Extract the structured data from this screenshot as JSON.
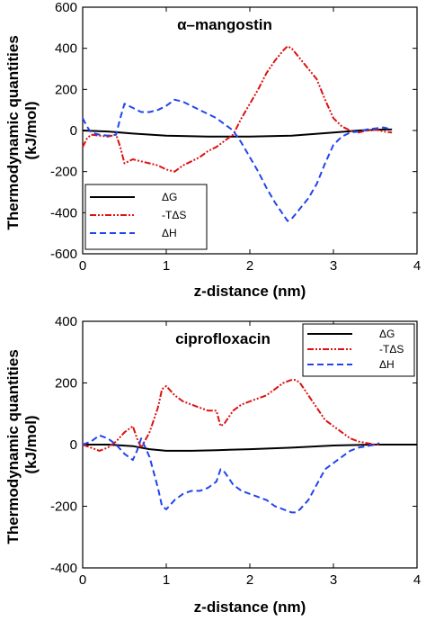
{
  "chart_data": [
    {
      "type": "line",
      "title": "α–mangostin",
      "xlabel": "z-distance (nm)",
      "ylabel": "Thermodynamic quantities (kJ/mol)",
      "xlim": [
        0,
        4
      ],
      "ylim": [
        -600,
        600
      ],
      "xticks": [
        0,
        1,
        2,
        3,
        4
      ],
      "yticks": [
        -600,
        -400,
        -200,
        0,
        200,
        400,
        600
      ],
      "legend_position": "bottom-left",
      "series": [
        {
          "name": "ΔG",
          "color": "#000000",
          "style": "solid",
          "x": [
            0,
            0.3,
            0.6,
            1.0,
            1.5,
            2.0,
            2.5,
            3.0,
            3.3,
            3.6,
            3.7
          ],
          "y": [
            0,
            -5,
            -15,
            -25,
            -30,
            -30,
            -25,
            -10,
            0,
            5,
            5
          ]
        },
        {
          "name": "-TΔS",
          "color": "#dd1111",
          "style": "dashdotdot",
          "x": [
            0,
            0.05,
            0.1,
            0.2,
            0.3,
            0.4,
            0.45,
            0.5,
            0.6,
            0.7,
            0.8,
            0.9,
            1.0,
            1.1,
            1.2,
            1.3,
            1.4,
            1.5,
            1.6,
            1.7,
            1.8,
            1.9,
            2.0,
            2.1,
            2.2,
            2.3,
            2.4,
            2.45,
            2.5,
            2.6,
            2.7,
            2.8,
            2.9,
            3.0,
            3.1,
            3.2,
            3.3,
            3.4,
            3.5,
            3.6,
            3.7
          ],
          "y": [
            -80,
            -40,
            -20,
            -25,
            -30,
            -20,
            -80,
            -160,
            -140,
            -150,
            -160,
            -170,
            -190,
            -200,
            -170,
            -150,
            -130,
            -100,
            -80,
            -50,
            -20,
            60,
            130,
            200,
            280,
            340,
            390,
            410,
            400,
            350,
            300,
            250,
            150,
            60,
            20,
            0,
            -10,
            0,
            5,
            -5,
            -10
          ]
        },
        {
          "name": "ΔH",
          "color": "#2244ee",
          "style": "dashed",
          "x": [
            0,
            0.05,
            0.1,
            0.2,
            0.3,
            0.4,
            0.45,
            0.5,
            0.6,
            0.7,
            0.8,
            0.9,
            1.0,
            1.1,
            1.2,
            1.3,
            1.4,
            1.5,
            1.6,
            1.7,
            1.8,
            1.9,
            2.0,
            2.1,
            2.2,
            2.3,
            2.4,
            2.45,
            2.5,
            2.6,
            2.7,
            2.8,
            2.9,
            3.0,
            3.1,
            3.2,
            3.3,
            3.4,
            3.5,
            3.6,
            3.7
          ],
          "y": [
            60,
            20,
            -10,
            -20,
            -25,
            -20,
            60,
            130,
            110,
            90,
            90,
            100,
            120,
            150,
            140,
            120,
            100,
            80,
            60,
            30,
            0,
            -60,
            -130,
            -200,
            -280,
            -350,
            -410,
            -440,
            -430,
            -380,
            -330,
            -260,
            -160,
            -70,
            -30,
            -10,
            -5,
            5,
            10,
            15,
            5
          ]
        }
      ]
    },
    {
      "type": "line",
      "title": "ciprofloxacin",
      "xlabel": "z-distance (nm)",
      "ylabel": "Thermodynamic quantities (kJ/mol)",
      "xlim": [
        0,
        4
      ],
      "ylim": [
        -400,
        400
      ],
      "xticks": [
        0,
        1,
        2,
        3,
        4
      ],
      "yticks": [
        -400,
        -200,
        0,
        200,
        400
      ],
      "legend_position": "top-right",
      "series": [
        {
          "name": "ΔG",
          "color": "#000000",
          "style": "solid",
          "x": [
            0,
            0.3,
            0.6,
            0.8,
            1.0,
            1.3,
            1.6,
            2.0,
            2.5,
            3.0,
            3.5,
            4.0
          ],
          "y": [
            0,
            0,
            -5,
            -15,
            -20,
            -20,
            -18,
            -15,
            -10,
            -3,
            0,
            0
          ]
        },
        {
          "name": "-TΔS",
          "color": "#dd1111",
          "style": "dashdotdot",
          "x": [
            0,
            0.1,
            0.2,
            0.3,
            0.4,
            0.5,
            0.6,
            0.65,
            0.7,
            0.8,
            0.9,
            0.95,
            1.0,
            1.1,
            1.2,
            1.3,
            1.4,
            1.5,
            1.6,
            1.65,
            1.7,
            1.8,
            1.9,
            2.0,
            2.1,
            2.2,
            2.3,
            2.4,
            2.5,
            2.55,
            2.6,
            2.7,
            2.8,
            2.9,
            3.0,
            3.1,
            3.2,
            3.3,
            3.4,
            3.5,
            3.55
          ],
          "y": [
            0,
            -10,
            -20,
            -10,
            10,
            40,
            60,
            20,
            -10,
            40,
            120,
            180,
            190,
            160,
            140,
            130,
            120,
            110,
            110,
            60,
            70,
            110,
            130,
            140,
            150,
            160,
            180,
            200,
            210,
            210,
            200,
            160,
            120,
            80,
            60,
            40,
            20,
            10,
            5,
            0,
            0
          ]
        },
        {
          "name": "ΔH",
          "color": "#2244ee",
          "style": "dashed",
          "x": [
            0,
            0.1,
            0.2,
            0.3,
            0.4,
            0.5,
            0.6,
            0.65,
            0.7,
            0.8,
            0.9,
            0.95,
            1.0,
            1.1,
            1.2,
            1.3,
            1.4,
            1.5,
            1.6,
            1.65,
            1.7,
            1.8,
            1.9,
            2.0,
            2.1,
            2.2,
            2.3,
            2.4,
            2.5,
            2.55,
            2.6,
            2.7,
            2.8,
            2.9,
            3.0,
            3.1,
            3.2,
            3.3,
            3.4,
            3.5,
            3.55
          ],
          "y": [
            0,
            10,
            30,
            20,
            0,
            -30,
            -50,
            -20,
            20,
            -40,
            -140,
            -200,
            -210,
            -180,
            -160,
            -150,
            -150,
            -140,
            -120,
            -80,
            -90,
            -130,
            -150,
            -160,
            -170,
            -180,
            -200,
            -210,
            -220,
            -220,
            -210,
            -180,
            -130,
            -80,
            -60,
            -40,
            -20,
            -10,
            -5,
            0,
            5
          ]
        }
      ]
    }
  ]
}
